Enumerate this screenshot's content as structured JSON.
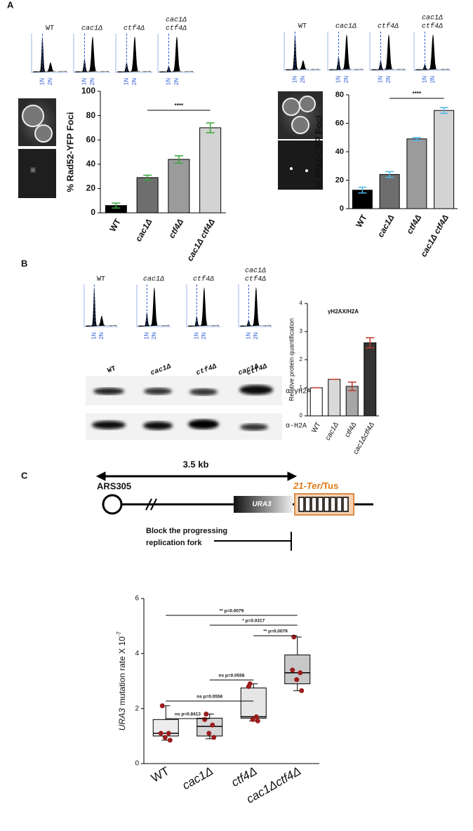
{
  "panels": {
    "a": "A",
    "b": "B",
    "c": "C"
  },
  "flow_labels": [
    [
      "WT"
    ],
    [
      "cac1Δ"
    ],
    [
      "ctf4Δ"
    ],
    [
      "cac1Δ",
      "ctf4Δ"
    ]
  ],
  "flow_axis_labels": [
    "1N",
    "2N"
  ],
  "blot": {
    "lanes": [
      [
        "WT"
      ],
      [
        "cac1Δ"
      ],
      [
        "ctf4Δ"
      ],
      [
        "cac1Δ",
        "ctf4Δ"
      ]
    ],
    "antibodies": [
      "α-γH2AX",
      "α-H2A"
    ]
  },
  "diagram": {
    "distance": "3.5 kb",
    "origin": "ARS305",
    "gene": "URA3",
    "barrier": [
      "21-Ter/",
      "Tus"
    ],
    "block": [
      "Block the progressing",
      "replication fork"
    ]
  },
  "chart_data": [
    {
      "type": "bar",
      "ylabel": "% Rad52-YFP Foci",
      "categories": [
        "WT",
        "cac1Δ",
        "ctf4Δ",
        "cac1Δ ctf4Δ"
      ],
      "values": [
        6,
        29,
        44,
        70
      ],
      "errors": [
        2,
        2,
        3,
        4
      ],
      "colors": [
        "#000000",
        "#6e6e6e",
        "#9b9b9b",
        "#d3d3d3"
      ],
      "error_color": "#3aa53a",
      "ylim": [
        0,
        100
      ],
      "yticks": [
        0,
        20,
        40,
        60,
        80,
        100
      ],
      "significance": [
        {
          "from": 1,
          "to": 3,
          "label": "****"
        }
      ]
    },
    {
      "type": "bar",
      "ylabel": "% Rfa1-CFP Foci",
      "categories": [
        "WT",
        "cac1Δ",
        "ctf4Δ",
        "cac1Δ ctf4Δ"
      ],
      "values": [
        13,
        24,
        49,
        69
      ],
      "errors": [
        2,
        2,
        1,
        2
      ],
      "colors": [
        "#000000",
        "#6e6e6e",
        "#9b9b9b",
        "#d3d3d3"
      ],
      "error_color": "#4fb6e8",
      "ylim": [
        0,
        80
      ],
      "yticks": [
        0,
        20,
        40,
        60,
        80
      ],
      "significance": [
        {
          "from": 1,
          "to": 3,
          "label": "****"
        }
      ]
    },
    {
      "type": "bar",
      "title": "γH2AX/H2A",
      "ylabel": "Relative protein quantification",
      "categories": [
        "WT",
        "cac1Δ",
        "ctf4Δ",
        "cac1Δctf4Δ"
      ],
      "values": [
        1,
        1.3,
        1.05,
        2.6
      ],
      "errors": [
        0,
        0,
        0.15,
        0.18
      ],
      "colors": [
        "#ffffff",
        "#d9d9d9",
        "#a6a6a6",
        "#333333"
      ],
      "error_color": "#c0392b",
      "ylim": [
        0,
        4
      ],
      "yticks": [
        0,
        1,
        2,
        3,
        4
      ]
    },
    {
      "type": "box",
      "ylabel": [
        "URA3",
        "mutation rate X 10",
        "-7"
      ],
      "categories": [
        "WT",
        "cac1Δ",
        "ctf4Δ",
        "cac1Δctf4Δ"
      ],
      "min": [
        0.85,
        0.9,
        1.55,
        2.65
      ],
      "q1": [
        1.0,
        1.0,
        1.65,
        2.9
      ],
      "median": [
        1.1,
        1.35,
        1.7,
        3.3
      ],
      "q3": [
        1.6,
        1.65,
        2.75,
        3.95
      ],
      "max": [
        2.1,
        1.8,
        2.9,
        4.6
      ],
      "points": [
        [
          2.1,
          1.1,
          1.1,
          0.95,
          0.85
        ],
        [
          1.8,
          1.6,
          1.4,
          1.1,
          0.95
        ],
        [
          2.9,
          2.8,
          1.7,
          1.6,
          1.55
        ],
        [
          4.6,
          3.4,
          3.3,
          3.05,
          2.65
        ]
      ],
      "colors": [
        "#ececec",
        "#d6d6d6",
        "#e6e6e6",
        "#c8c8c8"
      ],
      "point_color": "#9b1c1c",
      "ylim": [
        0,
        6
      ],
      "yticks": [
        0,
        2,
        4,
        6
      ],
      "comparisons": [
        {
          "from": 0,
          "to": 1,
          "label": "ns p=0.8413"
        },
        {
          "from": 0,
          "to": 2,
          "label": "ns p=0.0556"
        },
        {
          "from": 1,
          "to": 2,
          "label": "ns p=0.0556"
        },
        {
          "from": 0,
          "to": 3,
          "label": "** p=0.0079"
        },
        {
          "from": 1,
          "to": 3,
          "label": "* p=0.0317"
        },
        {
          "from": 2,
          "to": 3,
          "label": "** p=0.0079"
        }
      ]
    }
  ]
}
